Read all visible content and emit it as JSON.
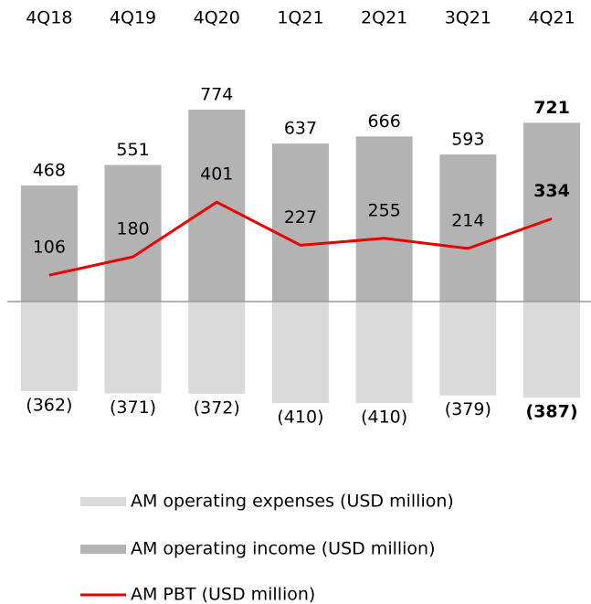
{
  "chart_data": {
    "type": "bar",
    "categories": [
      "4Q18",
      "4Q19",
      "4Q20",
      "1Q21",
      "2Q21",
      "3Q21",
      "4Q21"
    ],
    "series": [
      {
        "name": "AM operating expenses (USD million)",
        "color": "#dadada",
        "values": [
          -362,
          -371,
          -372,
          -410,
          -410,
          -379,
          -387
        ],
        "value_labels": [
          "(362)",
          "(371)",
          "(372)",
          "(410)",
          "(410)",
          "(379)",
          "(387)"
        ]
      },
      {
        "name": "AM operating income (USD million)",
        "color": "#b3b3b3",
        "values": [
          468,
          551,
          774,
          637,
          666,
          593,
          721
        ]
      },
      {
        "name": "AM PBT (USD million)",
        "color": "#e60000",
        "type": "line",
        "values": [
          106,
          180,
          401,
          227,
          255,
          214,
          334
        ]
      }
    ],
    "ylim": [
      -450,
      850
    ]
  }
}
